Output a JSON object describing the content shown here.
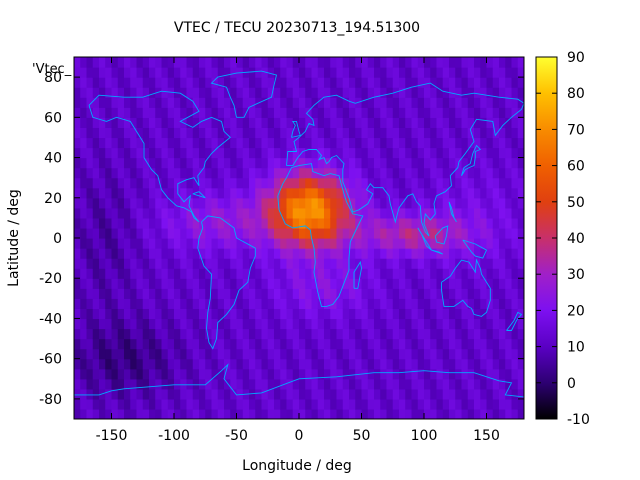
{
  "title": "VTEC / TECU 20230713_194.51300",
  "legend_key": "'Vtec_",
  "chart_data": {
    "type": "heatmap",
    "xlabel": "Longitude / deg",
    "ylabel": "Latitude / deg",
    "xlim": [
      -180,
      180
    ],
    "ylim": [
      -90,
      90
    ],
    "xticks": [
      "-150",
      "-100",
      "-50",
      "0",
      "50",
      "100",
      "150"
    ],
    "yticks": [
      "-80",
      "-60",
      "-40",
      "-20",
      "0",
      "20",
      "40",
      "60",
      "80"
    ],
    "colorbar": {
      "range": [
        -10,
        90
      ],
      "ticks": [
        "-10",
        "0",
        "10",
        "20",
        "30",
        "40",
        "50",
        "60",
        "70",
        "80",
        "90"
      ],
      "palette": [
        "#000000",
        "#2d0072",
        "#5a00c4",
        "#7d10f0",
        "#a020c8",
        "#c8306a",
        "#e04010",
        "#f06000",
        "#f88c00",
        "#ffc000",
        "#ffff30"
      ]
    },
    "peak": {
      "lon": 10,
      "lat": 15,
      "value": 75
    },
    "coastline_color": "#00aaff"
  }
}
